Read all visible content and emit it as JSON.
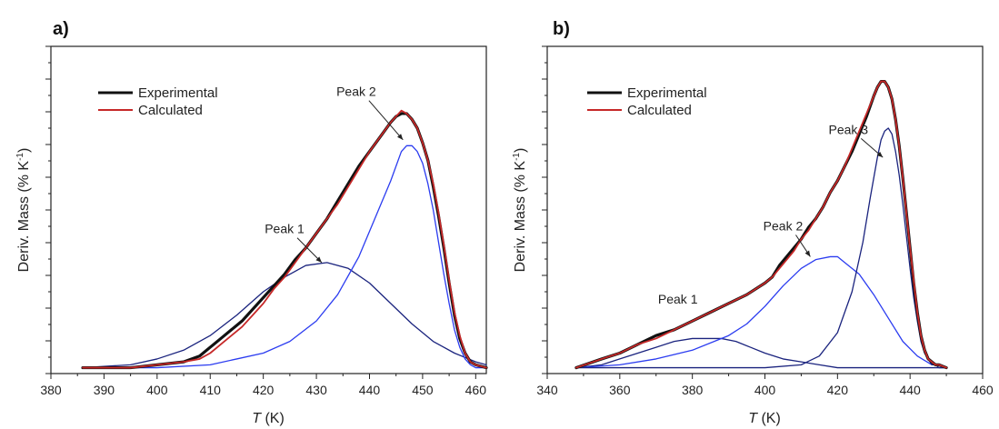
{
  "chart_data": [
    {
      "type": "line",
      "panel_label": "a)",
      "xlabel_italic": "T",
      "xlabel_unit": " (K)",
      "ylabel_main": "Deriv. Mass (% K",
      "ylabel_sup": "-1",
      "ylabel_close": ")",
      "xlim": [
        380,
        462
      ],
      "xticks": [
        380,
        390,
        400,
        410,
        420,
        430,
        440,
        450,
        460
      ],
      "ylim": [
        -0.02,
        1.1
      ],
      "y_ticks_labeled": false,
      "legend_position": "top-left",
      "legend": [
        {
          "label": "Experimental",
          "color": "#111111"
        },
        {
          "label": "Calculated",
          "color": "#c62828"
        }
      ],
      "series": [
        {
          "name": "Experimental",
          "color": "#111111",
          "stroke_width": 3.2,
          "x": [
            386,
            395,
            400,
            405,
            408,
            410,
            412,
            414,
            416,
            418,
            420,
            422,
            424,
            426,
            428,
            430,
            432,
            434,
            436,
            438,
            440,
            442,
            444,
            445,
            446,
            447,
            448,
            449,
            450,
            451,
            452,
            453,
            454,
            455,
            456,
            457,
            458,
            459,
            460,
            462
          ],
          "y": [
            0.0,
            0.0,
            0.01,
            0.02,
            0.04,
            0.07,
            0.1,
            0.13,
            0.16,
            0.2,
            0.24,
            0.28,
            0.32,
            0.37,
            0.41,
            0.46,
            0.51,
            0.57,
            0.63,
            0.69,
            0.74,
            0.79,
            0.84,
            0.86,
            0.87,
            0.87,
            0.85,
            0.82,
            0.77,
            0.71,
            0.62,
            0.52,
            0.41,
            0.29,
            0.18,
            0.1,
            0.05,
            0.02,
            0.01,
            0.0
          ]
        },
        {
          "name": "Calculated",
          "color": "#c62828",
          "stroke_width": 1.8,
          "x": [
            386,
            395,
            400,
            405,
            408,
            410,
            412,
            414,
            416,
            418,
            420,
            422,
            424,
            426,
            428,
            430,
            432,
            434,
            436,
            438,
            440,
            442,
            444,
            445,
            446,
            447,
            448,
            449,
            450,
            451,
            452,
            453,
            454,
            455,
            456,
            457,
            458,
            459,
            460,
            462
          ],
          "y": [
            0.0,
            0.0,
            0.01,
            0.02,
            0.03,
            0.05,
            0.08,
            0.11,
            0.14,
            0.18,
            0.22,
            0.27,
            0.31,
            0.36,
            0.41,
            0.46,
            0.51,
            0.56,
            0.62,
            0.68,
            0.74,
            0.79,
            0.84,
            0.86,
            0.88,
            0.87,
            0.85,
            0.82,
            0.77,
            0.71,
            0.63,
            0.53,
            0.42,
            0.3,
            0.19,
            0.11,
            0.05,
            0.02,
            0.01,
            0.0
          ]
        },
        {
          "name": "Peak 1",
          "color": "#1a237e",
          "stroke_width": 1.3,
          "x": [
            386,
            395,
            400,
            405,
            410,
            415,
            420,
            424,
            428,
            432,
            436,
            440,
            444,
            448,
            452,
            456,
            460,
            462
          ],
          "y": [
            0.0,
            0.01,
            0.03,
            0.06,
            0.11,
            0.18,
            0.26,
            0.31,
            0.35,
            0.36,
            0.34,
            0.29,
            0.22,
            0.15,
            0.09,
            0.05,
            0.02,
            0.01
          ]
        },
        {
          "name": "Peak 2",
          "color": "#2b3cf0",
          "stroke_width": 1.3,
          "x": [
            386,
            400,
            410,
            415,
            420,
            425,
            430,
            434,
            438,
            441,
            444,
            446,
            447,
            448,
            449,
            450,
            451,
            452,
            453,
            454,
            455,
            456,
            457,
            458,
            459,
            460,
            462
          ],
          "y": [
            0.0,
            0.0,
            0.01,
            0.03,
            0.05,
            0.09,
            0.16,
            0.25,
            0.38,
            0.51,
            0.64,
            0.74,
            0.76,
            0.76,
            0.74,
            0.7,
            0.63,
            0.54,
            0.43,
            0.32,
            0.22,
            0.13,
            0.07,
            0.03,
            0.01,
            0.0,
            0.0
          ]
        }
      ],
      "annotations": [
        {
          "text": "Peak 1",
          "x": 424,
          "y": 0.46,
          "arrow_to": [
            431,
            0.36
          ]
        },
        {
          "text": "Peak 2",
          "x": 437.5,
          "y": 0.93,
          "arrow_to": [
            446.3,
            0.78
          ]
        }
      ]
    },
    {
      "type": "line",
      "panel_label": "b)",
      "xlabel_italic": "T",
      "xlabel_unit": " (K)",
      "ylabel_main": "Deriv. Mass (% K",
      "ylabel_sup": "-1",
      "ylabel_close": ")",
      "xlim": [
        340,
        460
      ],
      "xticks": [
        340,
        360,
        380,
        400,
        420,
        440,
        460
      ],
      "ylim": [
        -0.02,
        1.1
      ],
      "y_ticks_labeled": false,
      "legend_position": "top-left",
      "legend": [
        {
          "label": "Experimental",
          "color": "#111111"
        },
        {
          "label": "Calculated",
          "color": "#c62828"
        }
      ],
      "series": [
        {
          "name": "Experimental",
          "color": "#111111",
          "stroke_width": 3.2,
          "x": [
            348,
            355,
            360,
            365,
            370,
            375,
            380,
            385,
            390,
            395,
            400,
            402,
            404,
            406,
            408,
            410,
            412,
            414,
            416,
            418,
            420,
            422,
            424,
            426,
            428,
            430,
            431,
            432,
            433,
            434,
            435,
            436,
            437,
            438,
            439,
            440,
            441,
            442,
            443,
            444,
            445,
            446,
            447,
            448,
            450
          ],
          "y": [
            0.0,
            0.03,
            0.05,
            0.08,
            0.11,
            0.13,
            0.16,
            0.19,
            0.22,
            0.25,
            0.29,
            0.31,
            0.35,
            0.38,
            0.41,
            0.44,
            0.48,
            0.51,
            0.55,
            0.6,
            0.64,
            0.69,
            0.74,
            0.8,
            0.86,
            0.93,
            0.96,
            0.98,
            0.98,
            0.96,
            0.92,
            0.85,
            0.76,
            0.65,
            0.53,
            0.41,
            0.29,
            0.19,
            0.11,
            0.06,
            0.03,
            0.02,
            0.01,
            0.01,
            0.0
          ]
        },
        {
          "name": "Calculated",
          "color": "#c62828",
          "stroke_width": 1.8,
          "x": [
            348,
            355,
            360,
            365,
            370,
            375,
            380,
            385,
            390,
            395,
            400,
            402,
            404,
            406,
            408,
            410,
            412,
            414,
            416,
            418,
            420,
            422,
            424,
            426,
            428,
            430,
            431,
            432,
            433,
            434,
            435,
            436,
            437,
            438,
            439,
            440,
            441,
            442,
            443,
            444,
            445,
            446,
            447,
            448,
            450
          ],
          "y": [
            0.0,
            0.03,
            0.05,
            0.08,
            0.1,
            0.13,
            0.16,
            0.19,
            0.22,
            0.25,
            0.29,
            0.31,
            0.34,
            0.37,
            0.4,
            0.44,
            0.47,
            0.51,
            0.55,
            0.6,
            0.64,
            0.69,
            0.75,
            0.81,
            0.87,
            0.93,
            0.96,
            0.98,
            0.98,
            0.96,
            0.92,
            0.85,
            0.76,
            0.65,
            0.53,
            0.41,
            0.3,
            0.19,
            0.11,
            0.06,
            0.03,
            0.02,
            0.01,
            0.01,
            0.0
          ]
        },
        {
          "name": "Peak 1",
          "color": "#1a237e",
          "stroke_width": 1.3,
          "x": [
            348,
            355,
            360,
            365,
            370,
            375,
            380,
            384,
            388,
            392,
            396,
            400,
            405,
            410,
            415,
            420,
            430,
            440,
            450
          ],
          "y": [
            0.0,
            0.01,
            0.03,
            0.05,
            0.07,
            0.09,
            0.1,
            0.1,
            0.1,
            0.09,
            0.07,
            0.05,
            0.03,
            0.02,
            0.01,
            0.0,
            0.0,
            0.0,
            0.0
          ]
        },
        {
          "name": "Peak 2",
          "color": "#2b3cf0",
          "stroke_width": 1.3,
          "x": [
            348,
            360,
            370,
            380,
            390,
            395,
            400,
            405,
            410,
            414,
            418,
            420,
            422,
            426,
            430,
            434,
            438,
            442,
            446,
            448,
            450
          ],
          "y": [
            0.0,
            0.01,
            0.03,
            0.06,
            0.11,
            0.15,
            0.21,
            0.28,
            0.34,
            0.37,
            0.38,
            0.38,
            0.36,
            0.32,
            0.25,
            0.17,
            0.09,
            0.04,
            0.01,
            0.01,
            0.0
          ]
        },
        {
          "name": "Peak 3",
          "color": "#1a237e",
          "stroke_width": 1.3,
          "x": [
            348,
            400,
            410,
            415,
            420,
            424,
            427,
            429,
            431,
            432,
            433,
            434,
            435,
            436,
            437,
            438,
            439,
            440,
            441,
            442,
            443,
            444,
            445,
            446,
            447,
            448,
            450
          ],
          "y": [
            0.0,
            0.0,
            0.01,
            0.04,
            0.12,
            0.26,
            0.43,
            0.58,
            0.72,
            0.78,
            0.81,
            0.82,
            0.8,
            0.74,
            0.66,
            0.56,
            0.45,
            0.34,
            0.24,
            0.16,
            0.09,
            0.05,
            0.03,
            0.01,
            0.01,
            0.0,
            0.0
          ]
        }
      ],
      "annotations": [
        {
          "text": "Peak 1",
          "x": 376,
          "y": 0.22,
          "arrow_to": null
        },
        {
          "text": "Peak 2",
          "x": 405,
          "y": 0.47,
          "arrow_to": [
            412.5,
            0.38
          ]
        },
        {
          "text": "Peak 3",
          "x": 423,
          "y": 0.8,
          "arrow_to": [
            432.5,
            0.72
          ]
        }
      ]
    }
  ]
}
